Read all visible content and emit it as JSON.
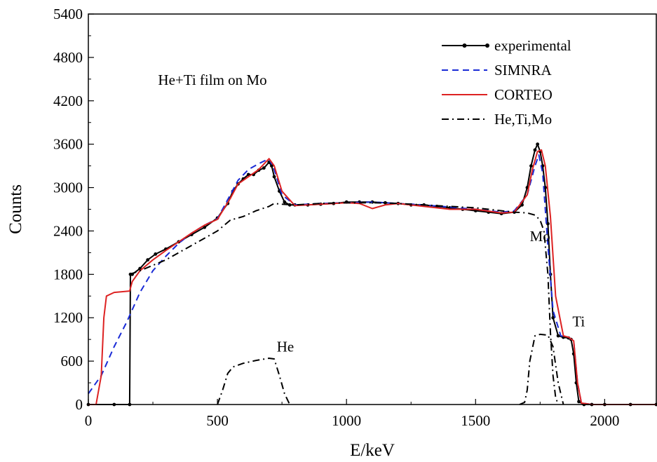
{
  "chart_data": {
    "type": "line",
    "xlabel": "E/keV",
    "ylabel": "Counts",
    "xlim": [
      0,
      2200
    ],
    "ylim": [
      0,
      5400
    ],
    "xticks": [
      0,
      500,
      1000,
      1500,
      2000
    ],
    "yticks": [
      0,
      600,
      1200,
      1800,
      2400,
      3000,
      3600,
      4200,
      4800,
      5400
    ],
    "grid": false,
    "legend_position": "top-right",
    "annotations": [
      {
        "text": "He+Ti film on Mo",
        "x": 270,
        "y": 4420
      },
      {
        "text": "He",
        "x": 730,
        "y": 730
      },
      {
        "text": "Ti",
        "x": 1875,
        "y": 1080
      },
      {
        "text": "Mo",
        "x": 1710,
        "y": 2260
      }
    ],
    "series": [
      {
        "name": "experimental",
        "style": "solid-dots",
        "color": "#000000",
        "x": [
          0,
          100,
          160,
          163,
          170,
          200,
          230,
          260,
          300,
          350,
          400,
          450,
          500,
          540,
          560,
          580,
          600,
          620,
          640,
          660,
          680,
          700,
          710,
          720,
          740,
          760,
          780,
          800,
          850,
          900,
          950,
          1000,
          1050,
          1100,
          1150,
          1200,
          1250,
          1300,
          1350,
          1400,
          1450,
          1500,
          1550,
          1600,
          1650,
          1680,
          1700,
          1715,
          1730,
          1740,
          1750,
          1760,
          1770,
          1780,
          1790,
          1800,
          1820,
          1840,
          1860,
          1870,
          1880,
          1890,
          1900,
          1920,
          1950,
          2000,
          2100,
          2200
        ],
        "y": [
          0,
          0,
          0,
          1800,
          1800,
          1880,
          2000,
          2080,
          2150,
          2250,
          2350,
          2450,
          2580,
          2780,
          2950,
          3050,
          3120,
          3180,
          3180,
          3240,
          3270,
          3350,
          3300,
          3150,
          2950,
          2800,
          2760,
          2760,
          2760,
          2770,
          2780,
          2800,
          2800,
          2800,
          2790,
          2780,
          2760,
          2760,
          2740,
          2720,
          2700,
          2680,
          2660,
          2640,
          2660,
          2760,
          3000,
          3300,
          3520,
          3600,
          3500,
          3300,
          3000,
          2500,
          1800,
          1200,
          950,
          930,
          920,
          900,
          700,
          300,
          40,
          0,
          0,
          0,
          0,
          0
        ]
      },
      {
        "name": "SIMNRA",
        "style": "dashed",
        "color": "#1a2bd6",
        "x": [
          0,
          50,
          100,
          150,
          200,
          250,
          300,
          350,
          400,
          450,
          500,
          550,
          580,
          620,
          660,
          700,
          720,
          750,
          800,
          900,
          1000,
          1100,
          1200,
          1300,
          1400,
          1500,
          1600,
          1650,
          1700,
          1730,
          1745,
          1760,
          1780,
          1800,
          1830,
          1860,
          1880,
          1895,
          1910,
          1950,
          2200
        ],
        "y": [
          150,
          400,
          800,
          1150,
          1550,
          1850,
          2050,
          2230,
          2370,
          2480,
          2570,
          2900,
          3100,
          3250,
          3330,
          3400,
          3250,
          2900,
          2760,
          2780,
          2790,
          2800,
          2780,
          2760,
          2730,
          2700,
          2660,
          2680,
          2900,
          3300,
          3450,
          3200,
          2200,
          1300,
          950,
          930,
          880,
          300,
          20,
          0,
          0
        ]
      },
      {
        "name": "CORTEO",
        "style": "solid",
        "color": "#dd2222",
        "x": [
          0,
          30,
          50,
          60,
          70,
          100,
          130,
          160,
          170,
          200,
          250,
          300,
          350,
          400,
          450,
          500,
          550,
          580,
          620,
          660,
          700,
          720,
          750,
          800,
          900,
          1000,
          1050,
          1100,
          1150,
          1200,
          1300,
          1400,
          1500,
          1600,
          1650,
          1700,
          1720,
          1740,
          1755,
          1770,
          1790,
          1810,
          1840,
          1860,
          1880,
          1895,
          1910,
          1950,
          2200
        ],
        "y": [
          0,
          0,
          400,
          1200,
          1500,
          1550,
          1560,
          1570,
          1700,
          1850,
          2000,
          2130,
          2250,
          2370,
          2480,
          2560,
          2850,
          3050,
          3150,
          3250,
          3400,
          3300,
          2950,
          2750,
          2770,
          2790,
          2780,
          2710,
          2760,
          2780,
          2740,
          2700,
          2700,
          2650,
          2660,
          2900,
          3250,
          3500,
          3520,
          3300,
          2600,
          1500,
          950,
          930,
          880,
          300,
          20,
          0,
          0
        ]
      },
      {
        "name": "He,Ti,Mo",
        "style": "dashdot",
        "color": "#000000",
        "segments": [
          {
            "component": "He",
            "x": [
              500,
              520,
              540,
              560,
              600,
              650,
              700,
              720,
              740,
              760,
              780
            ],
            "y": [
              0,
              200,
              430,
              520,
              570,
              610,
              640,
              630,
              400,
              150,
              0
            ]
          },
          {
            "component": "Ti",
            "x": [
              1670,
              1690,
              1700,
              1710,
              1730,
              1750,
              1780,
              1800,
              1820,
              1840
            ],
            "y": [
              0,
              30,
              200,
              600,
              950,
              970,
              960,
              800,
              300,
              0
            ]
          },
          {
            "component": "Mo",
            "x": [
              160,
              200,
              300,
              400,
              500,
              550,
              600,
              650,
              700,
              720,
              750,
              800,
              900,
              1000,
              1100,
              1200,
              1300,
              1400,
              1500,
              1600,
              1650,
              1700,
              1730,
              1750,
              1765,
              1780,
              1790,
              1800,
              1810,
              1820
            ],
            "y": [
              1800,
              1850,
              2000,
              2200,
              2400,
              2550,
              2600,
              2680,
              2740,
              2780,
              2770,
              2760,
              2780,
              2790,
              2790,
              2780,
              2760,
              2740,
              2720,
              2680,
              2660,
              2650,
              2620,
              2550,
              2400,
              1800,
              1000,
              400,
              100,
              0
            ]
          }
        ]
      }
    ]
  }
}
